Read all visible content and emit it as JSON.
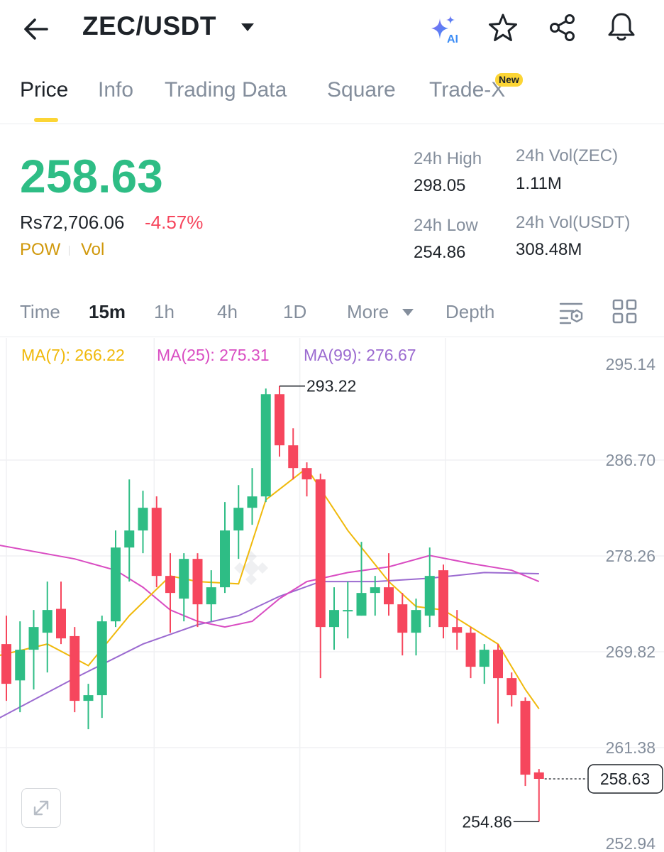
{
  "header": {
    "pair": "ZEC/USDT",
    "icons": [
      "back-arrow-icon",
      "chevron-down-icon",
      "ai-sparkle-icon",
      "star-icon",
      "share-icon",
      "bell-icon"
    ],
    "ai_label": "AI"
  },
  "tabs": [
    {
      "label": "Price",
      "active": true
    },
    {
      "label": "Info"
    },
    {
      "label": "Trading Data"
    },
    {
      "label": "Square"
    },
    {
      "label": "Trade-X",
      "badge": "New"
    }
  ],
  "price": {
    "last": "258.63",
    "fiat": "Rs72,706.06",
    "change": "-4.57%",
    "tags": [
      "POW",
      "Vol"
    ]
  },
  "stats": {
    "high_label": "24h High",
    "high_value": "298.05",
    "low_label": "24h Low",
    "low_value": "254.86",
    "vol_base_label": "24h Vol(ZEC)",
    "vol_base_value": "1.11M",
    "vol_quote_label": "24h Vol(USDT)",
    "vol_quote_value": "308.48M"
  },
  "timeframes": {
    "items": [
      "Time",
      "15m",
      "1h",
      "4h",
      "1D",
      "More",
      "Depth"
    ],
    "active": "15m"
  },
  "colors": {
    "up": "#2ebd85",
    "down": "#f6465d",
    "ma7": "#f0b90b",
    "ma25": "#d94cc2",
    "ma99": "#9b6ad0",
    "accent": "#fcd535"
  },
  "chart_data": {
    "type": "candlestick",
    "ma_labels": {
      "ma7": "MA(7): 266.22",
      "ma25": "MA(25): 275.31",
      "ma99": "MA(99): 276.67"
    },
    "y_ticks": [
      "295.14",
      "286.70",
      "278.26",
      "269.82",
      "261.38",
      "252.94"
    ],
    "ylim": [
      252.94,
      295.14
    ],
    "high_marker": "293.22",
    "low_marker": "254.86",
    "current_price": "258.63",
    "candles": [
      {
        "o": 270.5,
        "h": 273.0,
        "l": 265.5,
        "c": 267.0
      },
      {
        "o": 267.3,
        "h": 272.5,
        "l": 264.5,
        "c": 270.0
      },
      {
        "o": 270.0,
        "h": 273.5,
        "l": 266.5,
        "c": 272.0
      },
      {
        "o": 271.5,
        "h": 276.0,
        "l": 268.0,
        "c": 273.5
      },
      {
        "o": 273.6,
        "h": 276.0,
        "l": 270.5,
        "c": 271.0
      },
      {
        "o": 271.2,
        "h": 272.0,
        "l": 264.5,
        "c": 265.5
      },
      {
        "o": 265.5,
        "h": 267.0,
        "l": 263.0,
        "c": 266.0
      },
      {
        "o": 266.0,
        "h": 273.0,
        "l": 264.0,
        "c": 272.5
      },
      {
        "o": 272.5,
        "h": 280.5,
        "l": 272.0,
        "c": 279.0
      },
      {
        "o": 279.0,
        "h": 285.0,
        "l": 276.0,
        "c": 280.5
      },
      {
        "o": 280.5,
        "h": 284.0,
        "l": 278.5,
        "c": 282.5
      },
      {
        "o": 282.5,
        "h": 283.5,
        "l": 275.5,
        "c": 276.5
      },
      {
        "o": 276.5,
        "h": 278.5,
        "l": 271.5,
        "c": 275.0
      },
      {
        "o": 274.5,
        "h": 278.5,
        "l": 272.5,
        "c": 278.0
      },
      {
        "o": 278.0,
        "h": 278.5,
        "l": 272.0,
        "c": 274.0
      },
      {
        "o": 274.0,
        "h": 277.0,
        "l": 272.5,
        "c": 275.5
      },
      {
        "o": 275.5,
        "h": 283.0,
        "l": 275.0,
        "c": 280.5
      },
      {
        "o": 280.5,
        "h": 284.5,
        "l": 278.0,
        "c": 282.5
      },
      {
        "o": 282.5,
        "h": 286.0,
        "l": 281.0,
        "c": 283.5
      },
      {
        "o": 283.5,
        "h": 293.0,
        "l": 283.0,
        "c": 292.5
      },
      {
        "o": 292.5,
        "h": 293.22,
        "l": 287.0,
        "c": 288.0
      },
      {
        "o": 288.0,
        "h": 289.5,
        "l": 285.0,
        "c": 286.0
      },
      {
        "o": 286.0,
        "h": 286.5,
        "l": 283.5,
        "c": 285.0
      },
      {
        "o": 285.0,
        "h": 285.5,
        "l": 267.5,
        "c": 272.0
      },
      {
        "o": 272.0,
        "h": 275.5,
        "l": 270.0,
        "c": 273.5
      },
      {
        "o": 273.5,
        "h": 276.0,
        "l": 271.0,
        "c": 273.5
      },
      {
        "o": 273.0,
        "h": 279.5,
        "l": 273.0,
        "c": 275.0
      },
      {
        "o": 275.0,
        "h": 276.5,
        "l": 273.0,
        "c": 275.5
      },
      {
        "o": 275.5,
        "h": 278.5,
        "l": 273.0,
        "c": 274.0
      },
      {
        "o": 274.0,
        "h": 275.0,
        "l": 269.5,
        "c": 271.5
      },
      {
        "o": 271.5,
        "h": 274.5,
        "l": 269.5,
        "c": 273.5
      },
      {
        "o": 273.0,
        "h": 279.0,
        "l": 272.0,
        "c": 276.5
      },
      {
        "o": 277.0,
        "h": 277.5,
        "l": 271.0,
        "c": 272.0
      },
      {
        "o": 272.0,
        "h": 273.5,
        "l": 270.0,
        "c": 271.5
      },
      {
        "o": 271.5,
        "h": 272.0,
        "l": 267.5,
        "c": 268.5
      },
      {
        "o": 268.5,
        "h": 270.5,
        "l": 267.0,
        "c": 270.0
      },
      {
        "o": 270.0,
        "h": 270.5,
        "l": 263.5,
        "c": 267.5
      },
      {
        "o": 267.5,
        "h": 268.0,
        "l": 265.0,
        "c": 266.0
      },
      {
        "o": 265.5,
        "h": 265.8,
        "l": 258.0,
        "c": 259.0
      },
      {
        "o": 259.2,
        "h": 259.5,
        "l": 254.86,
        "c": 258.63
      }
    ],
    "ma7": [
      [
        0,
        269.5
      ],
      [
        3,
        270.5
      ],
      [
        6,
        268.6
      ],
      [
        9,
        273.0
      ],
      [
        12,
        276.5
      ],
      [
        14,
        276.0
      ],
      [
        17,
        275.8
      ],
      [
        19,
        283.2
      ],
      [
        22,
        286.0
      ],
      [
        25,
        280.5
      ],
      [
        28,
        276.0
      ],
      [
        30,
        273.8
      ],
      [
        32,
        273.5
      ],
      [
        34,
        272.0
      ],
      [
        36,
        270.5
      ],
      [
        38,
        266.5
      ],
      [
        39,
        264.8
      ]
    ],
    "ma25": [
      [
        0,
        279.2
      ],
      [
        5,
        278.0
      ],
      [
        8,
        277.0
      ],
      [
        10,
        275.5
      ],
      [
        12,
        273.5
      ],
      [
        14,
        272.5
      ],
      [
        16,
        272.0
      ],
      [
        18,
        272.5
      ],
      [
        20,
        274.5
      ],
      [
        22,
        276.0
      ],
      [
        25,
        276.8
      ],
      [
        28,
        277.3
      ],
      [
        31,
        278.3
      ],
      [
        34,
        277.6
      ],
      [
        37,
        277.0
      ],
      [
        39,
        276.0
      ]
    ],
    "ma99": [
      [
        0,
        264.0
      ],
      [
        5,
        267.5
      ],
      [
        10,
        270.5
      ],
      [
        14,
        272.2
      ],
      [
        17,
        273.0
      ],
      [
        20,
        274.7
      ],
      [
        23,
        276.0
      ],
      [
        27,
        276.0
      ],
      [
        31,
        276.3
      ],
      [
        35,
        276.8
      ],
      [
        39,
        276.7
      ]
    ]
  }
}
